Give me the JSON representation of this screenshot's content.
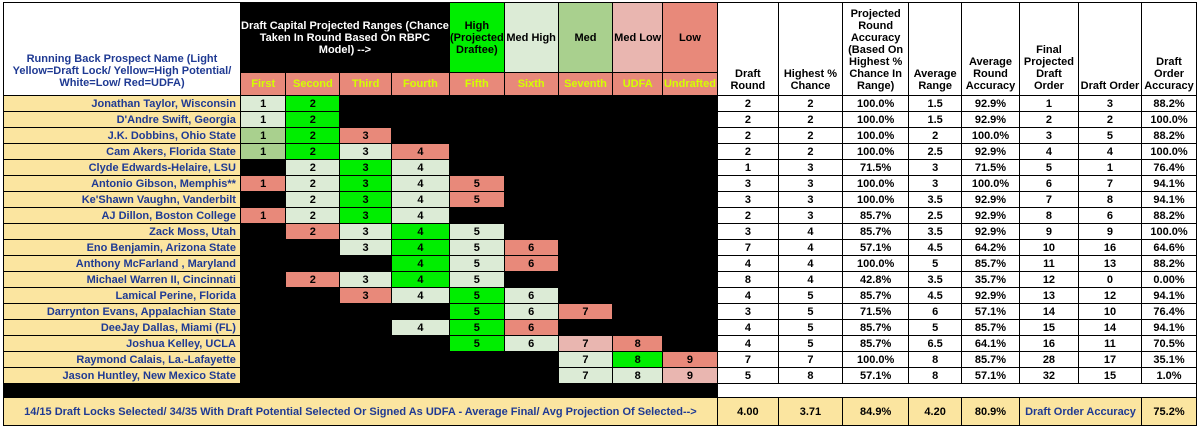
{
  "header": {
    "name_title": "Running Back Prospect Name (Light Yellow=Draft Lock/ Yellow=High Potential/ White=Low/ Red=UDFA)",
    "draft_ranges_title": "Draft Capital Projected Ranges (Chance Taken In Round Based On RBPC Model) -->",
    "levels": [
      "High (Projected Draftee)",
      "Med High",
      "Med",
      "Med Low",
      "Low"
    ],
    "rounds": [
      "First",
      "Second",
      "Third",
      "Fourth",
      "Fifth",
      "Sixth",
      "Seventh",
      "UDFA",
      "Undrafted"
    ],
    "stat_cols": [
      "Draft Round",
      "Highest % Chance",
      "Projected Round Accuracy (Based On Highest % Chance In Range)",
      "Average Range",
      "Average Round Accuracy",
      "Final Projected Draft Order",
      "Draft Order",
      "Draft Order Accuracy"
    ]
  },
  "rows": [
    {
      "name": "Jonathan Taylor, Wisconsin",
      "cells": [
        [
          "1",
          "w"
        ],
        [
          "2",
          "g"
        ],
        null,
        null,
        null,
        null,
        null,
        null,
        null
      ],
      "stats": [
        "2",
        "2",
        "100.0%",
        "1.5",
        "92.9%",
        "1",
        "3",
        "88.2%"
      ]
    },
    {
      "name": "D'Andre Swift, Georgia",
      "cells": [
        [
          "1",
          "w"
        ],
        [
          "2",
          "g"
        ],
        null,
        null,
        null,
        null,
        null,
        null,
        null
      ],
      "stats": [
        "2",
        "2",
        "100.0%",
        "1.5",
        "92.9%",
        "2",
        "2",
        "100.0%"
      ]
    },
    {
      "name": "J.K. Dobbins, Ohio State",
      "cells": [
        [
          "1",
          "lg"
        ],
        [
          "2",
          "g"
        ],
        [
          "3",
          "r"
        ],
        null,
        null,
        null,
        null,
        null,
        null
      ],
      "stats": [
        "2",
        "2",
        "100.0%",
        "2",
        "100.0%",
        "3",
        "5",
        "88.2%"
      ]
    },
    {
      "name": "Cam Akers, Florida State",
      "cells": [
        [
          "1",
          "lg"
        ],
        [
          "2",
          "g"
        ],
        [
          "3",
          "w"
        ],
        [
          "4",
          "r"
        ],
        null,
        null,
        null,
        null,
        null
      ],
      "stats": [
        "2",
        "2",
        "100.0%",
        "2.5",
        "92.9%",
        "4",
        "4",
        "100.0%"
      ]
    },
    {
      "name": "Clyde Edwards-Helaire, LSU",
      "cells": [
        null,
        [
          "2",
          "w"
        ],
        [
          "3",
          "g"
        ],
        [
          "4",
          "w"
        ],
        null,
        null,
        null,
        null,
        null
      ],
      "stats": [
        "1",
        "3",
        "71.5%",
        "3",
        "71.5%",
        "5",
        "1",
        "76.4%"
      ]
    },
    {
      "name": "Antonio Gibson, Memphis**",
      "cells": [
        [
          "1",
          "r"
        ],
        [
          "2",
          "w"
        ],
        [
          "3",
          "g"
        ],
        [
          "4",
          "w"
        ],
        [
          "5",
          "r"
        ],
        null,
        null,
        null,
        null
      ],
      "stats": [
        "3",
        "3",
        "100.0%",
        "3",
        "100.0%",
        "6",
        "7",
        "94.1%"
      ]
    },
    {
      "name": "Ke'Shawn Vaughn, Vanderbilt",
      "cells": [
        null,
        [
          "2",
          "w"
        ],
        [
          "3",
          "g"
        ],
        [
          "4",
          "w"
        ],
        [
          "5",
          "r"
        ],
        null,
        null,
        null,
        null
      ],
      "stats": [
        "3",
        "3",
        "100.0%",
        "3.5",
        "92.9%",
        "7",
        "8",
        "94.1%"
      ]
    },
    {
      "name": "AJ Dillon, Boston College",
      "cells": [
        [
          "1",
          "r"
        ],
        [
          "2",
          "w"
        ],
        [
          "3",
          "g"
        ],
        [
          "4",
          "w"
        ],
        null,
        null,
        null,
        null,
        null
      ],
      "stats": [
        "2",
        "3",
        "85.7%",
        "2.5",
        "92.9%",
        "8",
        "6",
        "88.2%"
      ]
    },
    {
      "name": "Zack Moss, Utah",
      "cells": [
        null,
        [
          "2",
          "r"
        ],
        [
          "3",
          "w"
        ],
        [
          "4",
          "g"
        ],
        [
          "5",
          "w"
        ],
        null,
        null,
        null,
        null
      ],
      "stats": [
        "3",
        "4",
        "85.7%",
        "3.5",
        "92.9%",
        "9",
        "9",
        "100.0%"
      ]
    },
    {
      "name": "Eno Benjamin, Arizona State",
      "cells": [
        null,
        null,
        [
          "3",
          "w"
        ],
        [
          "4",
          "g"
        ],
        [
          "5",
          "w"
        ],
        [
          "6",
          "r"
        ],
        null,
        null,
        null
      ],
      "stats": [
        "7",
        "4",
        "57.1%",
        "4.5",
        "64.2%",
        "10",
        "16",
        "64.6%"
      ]
    },
    {
      "name": "Anthony McFarland , Maryland",
      "cells": [
        null,
        null,
        null,
        [
          "4",
          "g"
        ],
        [
          "5",
          "w"
        ],
        [
          "6",
          "r"
        ],
        null,
        null,
        null
      ],
      "stats": [
        "4",
        "4",
        "100.0%",
        "5",
        "85.7%",
        "11",
        "13",
        "88.2%"
      ]
    },
    {
      "name": "Michael Warren II, Cincinnati",
      "cells": [
        null,
        [
          "2",
          "r"
        ],
        [
          "3",
          "w"
        ],
        [
          "4",
          "g"
        ],
        [
          "5",
          "w"
        ],
        null,
        null,
        null,
        null
      ],
      "stats": [
        "8",
        "4",
        "42.8%",
        "3.5",
        "35.7%",
        "12",
        "0",
        "0.00%"
      ]
    },
    {
      "name": "Lamical Perine, Florida",
      "cells": [
        null,
        null,
        [
          "3",
          "r"
        ],
        [
          "4",
          "w"
        ],
        [
          "5",
          "g"
        ],
        [
          "6",
          "w"
        ],
        null,
        null,
        null
      ],
      "stats": [
        "4",
        "5",
        "85.7%",
        "4.5",
        "92.9%",
        "13",
        "12",
        "94.1%"
      ]
    },
    {
      "name": "Darrynton Evans, Appalachian State",
      "cells": [
        null,
        null,
        null,
        null,
        [
          "5",
          "g"
        ],
        [
          "6",
          "w"
        ],
        [
          "7",
          "r"
        ],
        null,
        null
      ],
      "stats": [
        "3",
        "5",
        "71.5%",
        "6",
        "57.1%",
        "14",
        "10",
        "76.4%"
      ]
    },
    {
      "name": "DeeJay Dallas, Miami (FL)",
      "cells": [
        null,
        null,
        null,
        [
          "4",
          "w"
        ],
        [
          "5",
          "g"
        ],
        [
          "6",
          "r"
        ],
        null,
        null,
        null
      ],
      "stats": [
        "4",
        "5",
        "85.7%",
        "5",
        "85.7%",
        "15",
        "14",
        "94.1%"
      ]
    },
    {
      "name": "Joshua Kelley, UCLA",
      "cells": [
        null,
        null,
        null,
        null,
        [
          "5",
          "g"
        ],
        [
          "6",
          "w"
        ],
        [
          "7",
          "p"
        ],
        [
          "8",
          "r"
        ],
        null
      ],
      "stats": [
        "4",
        "5",
        "85.7%",
        "6.5",
        "64.1%",
        "16",
        "11",
        "70.5%"
      ]
    },
    {
      "name": "Raymond Calais, La.-Lafayette",
      "cells": [
        null,
        null,
        null,
        null,
        null,
        null,
        [
          "7",
          "w"
        ],
        [
          "8",
          "g"
        ],
        [
          "9",
          "r"
        ]
      ],
      "stats": [
        "7",
        "7",
        "100.0%",
        "8",
        "85.7%",
        "28",
        "17",
        "35.1%"
      ]
    },
    {
      "name": "Jason Huntley, New Mexico State",
      "cells": [
        null,
        null,
        null,
        null,
        null,
        null,
        [
          "7",
          "w"
        ],
        [
          "8",
          "w"
        ],
        [
          "9",
          "p"
        ]
      ],
      "stats": [
        "5",
        "8",
        "57.1%",
        "8",
        "57.1%",
        "32",
        "15",
        "1.0%"
      ]
    }
  ],
  "footer": {
    "summary": "14/15 Draft Locks Selected/ 34/35 With Draft Potential Selected Or Signed As UDFA - Average Final/ Avg Projection Of Selected-->",
    "draft_round": "4.00",
    "highest_chance": "3.71",
    "proj_accuracy": "84.9%",
    "avg_range": "4.20",
    "avg_round_accuracy": "80.9%",
    "order_label": "Draft Order Accuracy",
    "order_accuracy": "75.2%"
  },
  "colors": {
    "w": "#dcebd6",
    "g": "#00ee00",
    "r": "#e8897a",
    "p": "#e9b6b0",
    "lg": "#a9d08e",
    "name_bg": "#fbe5a0",
    "name_text": "#1f3a93",
    "round_label": "#d4ff00"
  }
}
